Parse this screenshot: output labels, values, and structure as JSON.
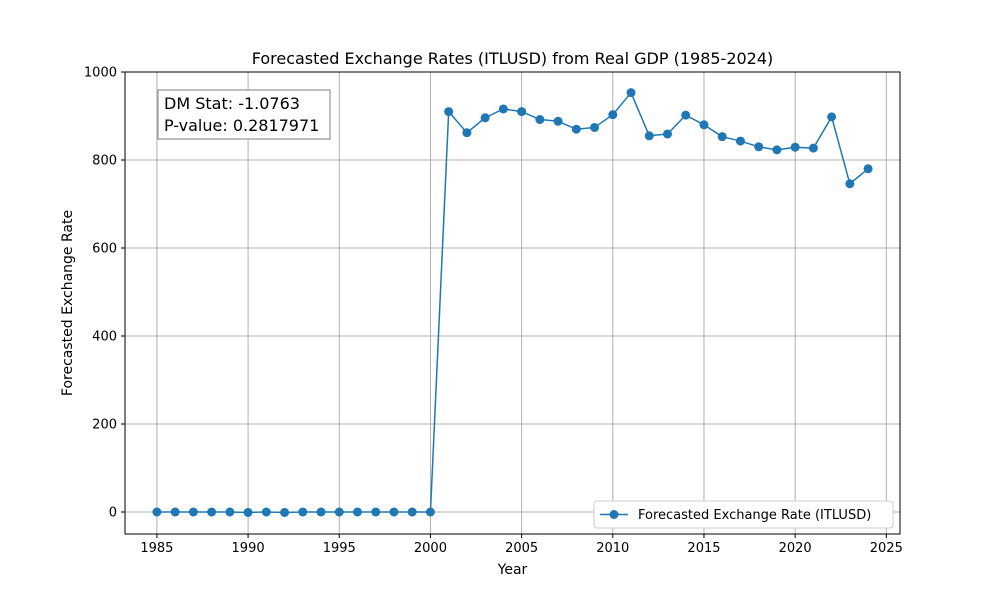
{
  "chart_data": {
    "type": "line",
    "title": "Forecasted Exchange Rates (ITLUSD) from Real GDP (1985-2024)",
    "xlabel": "Year",
    "ylabel": "Forecasted Exchange Rate",
    "xlim": [
      1983.25,
      2025.75
    ],
    "ylim": [
      -50,
      1000
    ],
    "xticks": [
      1985,
      1990,
      1995,
      2000,
      2005,
      2010,
      2015,
      2020,
      2025
    ],
    "yticks": [
      0,
      200,
      400,
      600,
      800,
      1000
    ],
    "grid": true,
    "legend_position": "lower-right",
    "annotation": {
      "line1": "DM Stat: -1.0763",
      "line2": "P-value: 0.2817971"
    },
    "series": [
      {
        "name": "Forecasted Exchange Rate (ITLUSD)",
        "color": "#1f77b4",
        "marker": "circle",
        "x": [
          1985,
          1986,
          1987,
          1988,
          1989,
          1990,
          1991,
          1992,
          1993,
          1994,
          1995,
          1996,
          1997,
          1998,
          1999,
          2000,
          2001,
          2002,
          2003,
          2004,
          2005,
          2006,
          2007,
          2008,
          2009,
          2010,
          2011,
          2012,
          2013,
          2014,
          2015,
          2016,
          2017,
          2018,
          2019,
          2020,
          2021,
          2022,
          2023,
          2024
        ],
        "y": [
          0,
          0,
          0,
          0,
          0,
          -1,
          0,
          -1,
          0,
          0,
          0,
          0,
          0,
          0,
          0,
          0,
          910,
          862,
          896,
          916,
          910,
          892,
          888,
          870,
          874,
          903,
          953,
          855,
          859,
          902,
          880,
          853,
          843,
          830,
          823,
          829,
          827,
          898,
          746,
          780
        ]
      }
    ]
  }
}
